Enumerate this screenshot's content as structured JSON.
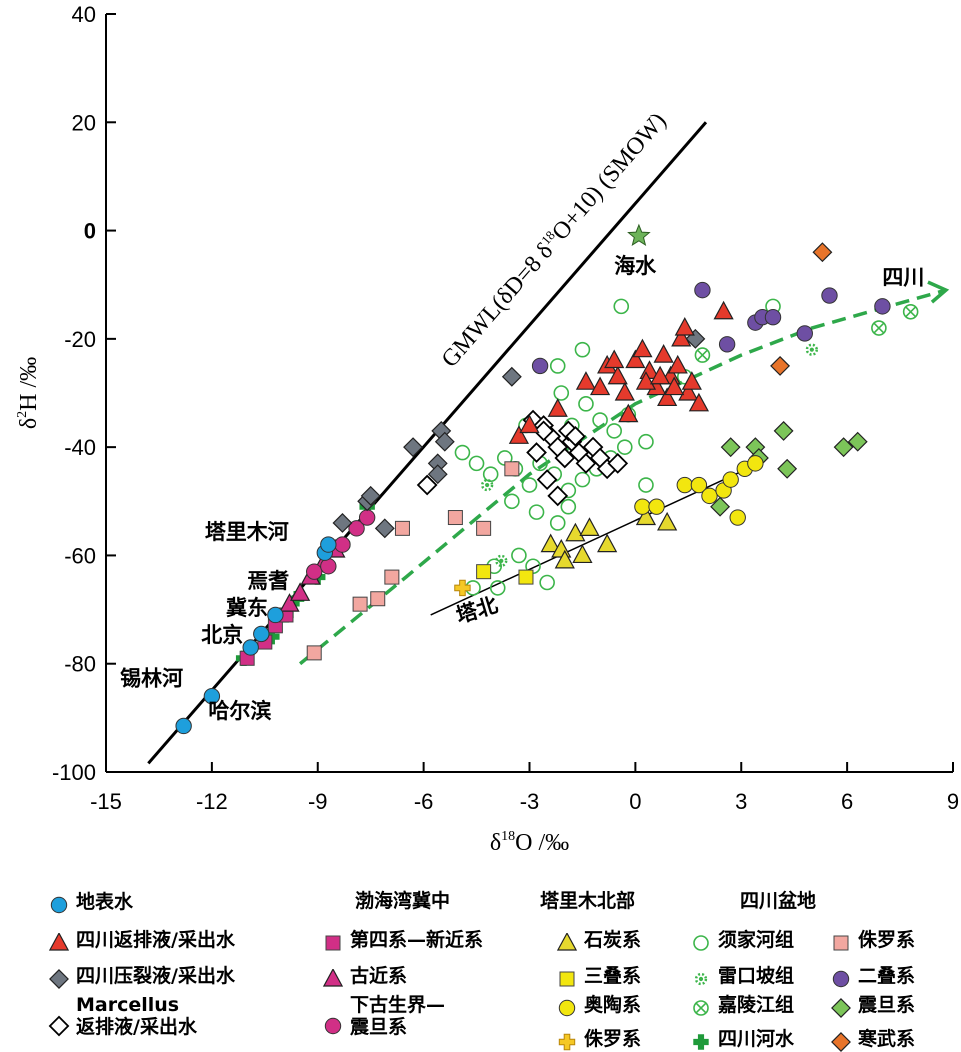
{
  "chart_data": {
    "type": "scatter",
    "xlabel": "δ18O /‰",
    "ylabel": "δ2H /‰",
    "xlim": [
      -15,
      9
    ],
    "ylim": [
      -100,
      40
    ],
    "xticks": [
      -15,
      -12,
      -9,
      -6,
      -3,
      0,
      3,
      6,
      9
    ],
    "yticks": [
      40,
      20,
      0,
      -20,
      -40,
      -60,
      -80,
      -100
    ],
    "gmwl": {
      "label": "GMWL(δD=8 δ18O+10) (SMOW)",
      "x": [
        -13.8,
        2.0
      ],
      "y": [
        -98.4,
        20.0
      ]
    },
    "tabei_line": {
      "label": "塔北",
      "x": [
        -5.8,
        3.5
      ],
      "y": [
        -71,
        -43
      ]
    },
    "sichuan_trend": {
      "label": "四川",
      "x": [
        -9.5,
        -6.5,
        -3,
        0,
        3,
        5,
        8.8
      ],
      "y": [
        -80,
        -64,
        -45,
        -32,
        -23,
        -18,
        -11
      ]
    },
    "seawater": {
      "label": "海水",
      "x": 0.1,
      "y": -1
    },
    "location_labels": [
      "塔里木河",
      "焉耆",
      "冀东",
      "北京",
      "锡林河",
      "哈尔滨"
    ],
    "series": [
      {
        "name": "地表水",
        "marker": "circle",
        "color": "#1e9fdc",
        "points": [
          [
            -12.8,
            -91.5
          ],
          [
            -12.0,
            -86
          ],
          [
            -10.9,
            -77
          ],
          [
            -10.6,
            -74.5
          ],
          [
            -10.2,
            -71
          ],
          [
            -8.8,
            -59.5
          ],
          [
            -8.7,
            -58
          ]
        ]
      },
      {
        "name": "四川返排液/采出水",
        "marker": "triangle",
        "color": "#e53a2c",
        "points": [
          [
            -3.3,
            -38
          ],
          [
            -3.0,
            -36
          ],
          [
            -2.2,
            -33
          ],
          [
            -1.4,
            -28
          ],
          [
            -0.8,
            -25
          ],
          [
            -0.5,
            -27
          ],
          [
            -0.3,
            -30
          ],
          [
            0.0,
            -24
          ],
          [
            0.2,
            -22
          ],
          [
            0.4,
            -26
          ],
          [
            0.6,
            -29
          ],
          [
            0.8,
            -23
          ],
          [
            1.0,
            -27
          ],
          [
            1.2,
            -25
          ],
          [
            1.3,
            -20
          ],
          [
            1.4,
            -18
          ],
          [
            1.5,
            -30
          ],
          [
            1.6,
            -28
          ],
          [
            1.8,
            -32
          ],
          [
            0.9,
            -31
          ],
          [
            -0.2,
            -34
          ],
          [
            -1.0,
            -29
          ],
          [
            2.5,
            -15
          ],
          [
            0.3,
            -28
          ],
          [
            0.7,
            -27
          ],
          [
            1.1,
            -29
          ],
          [
            -0.6,
            -24
          ]
        ]
      },
      {
        "name": "四川压裂液/采出水",
        "marker": "diamond",
        "color": "#6e7680",
        "points": [
          [
            -8.3,
            -54
          ],
          [
            -7.6,
            -50
          ],
          [
            -7.5,
            -49
          ],
          [
            -6.3,
            -40
          ],
          [
            -5.6,
            -43
          ],
          [
            -5.5,
            -37
          ],
          [
            -5.4,
            -39
          ],
          [
            -3.5,
            -27
          ],
          [
            1.7,
            -20
          ],
          [
            -5.6,
            -45
          ],
          [
            -7.1,
            -55
          ]
        ]
      },
      {
        "name": "Marcellus 返排液/采出水",
        "marker": "diamond-open",
        "color": "#000000",
        "points": [
          [
            -2.9,
            -35
          ],
          [
            -2.6,
            -36
          ],
          [
            -2.4,
            -38
          ],
          [
            -2.2,
            -40
          ],
          [
            -2.0,
            -42
          ],
          [
            -1.8,
            -39
          ],
          [
            -1.6,
            -41
          ],
          [
            -1.4,
            -43
          ],
          [
            -1.2,
            -40
          ],
          [
            -1.0,
            -42
          ],
          [
            -0.8,
            -44
          ],
          [
            -0.5,
            -43
          ],
          [
            -2.8,
            -41
          ],
          [
            -2.5,
            -46
          ],
          [
            -2.2,
            -49
          ],
          [
            -5.9,
            -47
          ],
          [
            -1.9,
            -37
          ],
          [
            -2.6,
            -37
          ],
          [
            -1.7,
            -38
          ]
        ]
      },
      {
        "name": "第四系—新近系",
        "marker": "square",
        "color": "#d12f86",
        "points": [
          [
            -11.0,
            -79
          ],
          [
            -10.5,
            -76
          ],
          [
            -10.2,
            -73
          ],
          [
            -9.9,
            -71
          ]
        ]
      },
      {
        "name": "古近系",
        "marker": "triangle",
        "color": "#d12f86",
        "points": [
          [
            -9.8,
            -69
          ],
          [
            -9.5,
            -67
          ],
          [
            -9.2,
            -64
          ],
          [
            -8.8,
            -61
          ],
          [
            -8.5,
            -59
          ]
        ]
      },
      {
        "name": "下古生界—震旦系",
        "marker": "circle",
        "color": "#d12f86",
        "points": [
          [
            -9.1,
            -63
          ],
          [
            -8.7,
            -62
          ],
          [
            -8.3,
            -58
          ],
          [
            -7.9,
            -55
          ],
          [
            -7.6,
            -53
          ]
        ]
      },
      {
        "name": "石炭系",
        "marker": "triangle",
        "color": "#e6d92e",
        "points": [
          [
            -2.4,
            -58
          ],
          [
            -2.1,
            -59
          ],
          [
            -1.7,
            -56
          ],
          [
            -1.3,
            -55
          ],
          [
            -0.8,
            -58
          ],
          [
            -2.0,
            -61
          ],
          [
            -1.5,
            -60
          ],
          [
            0.9,
            -54
          ],
          [
            0.3,
            -53
          ]
        ]
      },
      {
        "name": "三叠系",
        "marker": "square",
        "color": "#f2e60f",
        "points": [
          [
            -4.3,
            -63
          ],
          [
            -3.1,
            -64
          ]
        ]
      },
      {
        "name": "奥陶系",
        "marker": "circle",
        "color": "#f2e60f",
        "points": [
          [
            0.2,
            -51
          ],
          [
            0.6,
            -51
          ],
          [
            1.4,
            -47
          ],
          [
            1.8,
            -47
          ],
          [
            2.1,
            -49
          ],
          [
            2.5,
            -48
          ],
          [
            2.7,
            -46
          ],
          [
            3.1,
            -44
          ],
          [
            3.4,
            -43
          ],
          [
            2.9,
            -53
          ]
        ]
      },
      {
        "name": "侏罗系",
        "marker": "plus",
        "color": "#f5c825",
        "points": [
          [
            -4.9,
            -66
          ]
        ]
      },
      {
        "name": "须家河组",
        "marker": "circle-open",
        "color": "#3cb54a",
        "points": [
          [
            -4.9,
            -41
          ],
          [
            -4.5,
            -43
          ],
          [
            -4.1,
            -45
          ],
          [
            -3.7,
            -42
          ],
          [
            -3.4,
            -44
          ],
          [
            -3.0,
            -47
          ],
          [
            -2.7,
            -43
          ],
          [
            -2.3,
            -45
          ],
          [
            -1.9,
            -48
          ],
          [
            -1.5,
            -46
          ],
          [
            -1.1,
            -44
          ],
          [
            -0.7,
            -42
          ],
          [
            -0.3,
            -40
          ],
          [
            0.3,
            -39
          ],
          [
            -2.8,
            -52
          ],
          [
            -2.2,
            -54
          ],
          [
            -1.9,
            -51
          ],
          [
            -3.3,
            -60
          ],
          [
            -2.9,
            -62
          ],
          [
            -2.5,
            -65
          ],
          [
            -3.9,
            -66
          ],
          [
            -4.6,
            -66
          ],
          [
            -2.1,
            -30
          ],
          [
            -1.8,
            -36
          ],
          [
            -1.4,
            -32
          ],
          [
            -1.0,
            -35
          ],
          [
            -0.6,
            -37
          ],
          [
            -0.2,
            -34
          ],
          [
            1.4,
            -27
          ],
          [
            -0.4,
            -14
          ],
          [
            -1.5,
            -22
          ],
          [
            -2.2,
            -25
          ],
          [
            -3.1,
            -36
          ],
          [
            -3.5,
            -50
          ],
          [
            0.3,
            -47
          ],
          [
            -4.0,
            -62
          ],
          [
            3.9,
            -14
          ]
        ]
      },
      {
        "name": "雷口坡组",
        "marker": "gear",
        "color": "#3cb54a",
        "points": [
          [
            -4.2,
            -47
          ],
          [
            -3.8,
            -61
          ],
          [
            5.0,
            -22
          ]
        ]
      },
      {
        "name": "嘉陵江组",
        "marker": "circle-x",
        "color": "#3cb54a",
        "points": [
          [
            6.9,
            -18
          ],
          [
            7.8,
            -15
          ],
          [
            1.9,
            -23
          ]
        ]
      },
      {
        "name": "四川河水",
        "marker": "cross",
        "color": "#1f9a3a",
        "points": [
          [
            -11.1,
            -79
          ],
          [
            -10.3,
            -75
          ],
          [
            -9.9,
            -71
          ],
          [
            -9.6,
            -68
          ],
          [
            -9.0,
            -64
          ],
          [
            -8.3,
            -58
          ],
          [
            -7.6,
            -51
          ]
        ]
      },
      {
        "name": "侏罗系",
        "marker": "square",
        "color": "#f2a7a0",
        "points": [
          [
            -9.1,
            -78
          ],
          [
            -7.8,
            -69
          ],
          [
            -7.3,
            -68
          ],
          [
            -6.9,
            -64
          ],
          [
            -6.6,
            -55
          ],
          [
            -5.1,
            -53
          ],
          [
            -4.3,
            -55
          ],
          [
            -3.5,
            -44
          ]
        ]
      },
      {
        "name": "二叠系",
        "marker": "circle",
        "color": "#6e4fa3",
        "points": [
          [
            1.9,
            -11
          ],
          [
            2.6,
            -21
          ],
          [
            3.4,
            -17
          ],
          [
            3.6,
            -16
          ],
          [
            3.9,
            -16
          ],
          [
            4.8,
            -19
          ],
          [
            5.5,
            -12
          ],
          [
            7.0,
            -14
          ],
          [
            -2.7,
            -25
          ]
        ]
      },
      {
        "name": "震旦系",
        "marker": "diamond",
        "color": "#7cc559",
        "points": [
          [
            2.7,
            -40
          ],
          [
            3.4,
            -40
          ],
          [
            4.2,
            -37
          ],
          [
            5.9,
            -40
          ],
          [
            6.3,
            -39
          ],
          [
            4.3,
            -44
          ],
          [
            3.5,
            -42
          ],
          [
            2.4,
            -51
          ]
        ]
      },
      {
        "name": "寒武系",
        "marker": "diamond",
        "color": "#e8742a",
        "points": [
          [
            5.3,
            -4
          ],
          [
            4.1,
            -25
          ]
        ]
      }
    ]
  },
  "legend": {
    "headers": {
      "bohai": "渤海湾冀中",
      "tarim": "塔里木北部",
      "sichuan": "四川盆地"
    },
    "items": [
      {
        "label": "地表水",
        "series": 0
      },
      {
        "label": "四川返排液/采出水",
        "series": 1
      },
      {
        "label": "四川压裂液/采出水",
        "series": 2
      },
      {
        "label_lines": [
          "Marcellus",
          "返排液/采出水"
        ],
        "series": 3
      },
      {
        "label": "第四系—新近系",
        "series": 4
      },
      {
        "label": "古近系",
        "series": 5
      },
      {
        "label_lines": [
          "下古生界—",
          "震旦系"
        ],
        "series": 6
      },
      {
        "label": "石炭系",
        "series": 7
      },
      {
        "label": "三叠系",
        "series": 8
      },
      {
        "label": "奥陶系",
        "series": 9
      },
      {
        "label": "侏罗系",
        "series": 10
      },
      {
        "label": "须家河组",
        "series": 11
      },
      {
        "label": "雷口坡组",
        "series": 12
      },
      {
        "label": "嘉陵江组",
        "series": 13
      },
      {
        "label": "四川河水",
        "series": 14
      },
      {
        "label": "侏罗系",
        "series": 15
      },
      {
        "label": "二叠系",
        "series": 16
      },
      {
        "label": "震旦系",
        "series": 17
      },
      {
        "label": "寒武系",
        "series": 18
      }
    ]
  }
}
